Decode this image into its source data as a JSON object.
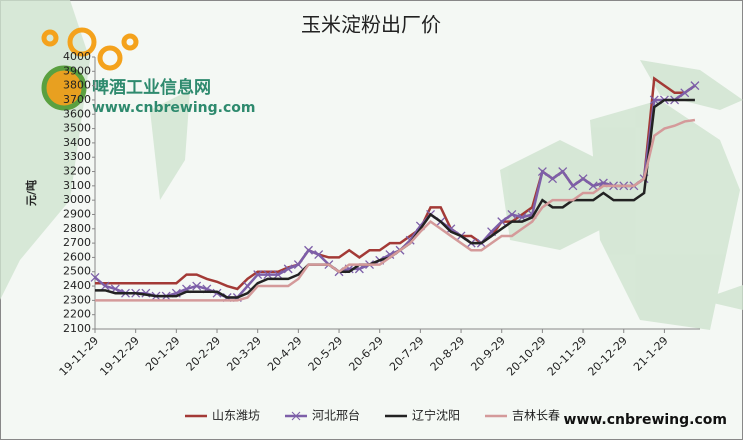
{
  "chart_data": {
    "type": "line",
    "title": "玉米淀粉出厂价",
    "y_label": "元/吨",
    "watermark": [
      "啤酒工业信息网",
      "www.cnbrewing.com"
    ],
    "source": "www.cnbrewing.com",
    "categories": [
      "19-11-29",
      null,
      null,
      null,
      "19-12-29",
      null,
      null,
      null,
      "20-1-29",
      null,
      null,
      null,
      "20-2-29",
      null,
      null,
      null,
      "20-3-29",
      null,
      null,
      null,
      "20-4-29",
      null,
      null,
      null,
      "20-5-29",
      null,
      null,
      null,
      "20-6-29",
      null,
      null,
      null,
      "20-7-29",
      null,
      null,
      null,
      "20-8-29",
      null,
      null,
      null,
      "20-9-29",
      null,
      null,
      null,
      "20-10-29",
      null,
      null,
      null,
      "20-11-29",
      null,
      null,
      null,
      "20-12-29",
      null,
      null,
      null,
      "21-1-29",
      null,
      null,
      null
    ],
    "series": [
      {
        "name": "山东潍坊",
        "color": "#a33a36",
        "marker": "none",
        "values": [
          2420,
          2420,
          2420,
          2420,
          2420,
          2420,
          2420,
          2420,
          2420,
          2480,
          2480,
          2450,
          2430,
          2400,
          2380,
          2450,
          2500,
          2500,
          2500,
          2530,
          2550,
          2650,
          2620,
          2600,
          2600,
          2650,
          2600,
          2650,
          2650,
          2700,
          2700,
          2750,
          2800,
          2950,
          2950,
          2800,
          2750,
          2750,
          2700,
          2750,
          2850,
          2850,
          2900,
          2950,
          3200,
          3150,
          3200,
          3100,
          3150,
          3100,
          3120,
          3100,
          3100,
          3100,
          3150,
          3850,
          3800,
          3750,
          3750,
          3800
        ]
      },
      {
        "name": "河北邢台",
        "color": "#7d5fa8",
        "marker": "x",
        "values": [
          2460,
          2400,
          2380,
          2350,
          2350,
          2350,
          2330,
          2330,
          2350,
          2380,
          2400,
          2380,
          2350,
          2320,
          2320,
          2400,
          2480,
          2480,
          2480,
          2520,
          2550,
          2650,
          2620,
          2550,
          2500,
          2520,
          2520,
          2550,
          2580,
          2620,
          2650,
          2720,
          2820,
          2900,
          2850,
          2800,
          2750,
          2700,
          2700,
          2780,
          2850,
          2900,
          2880,
          2900,
          3200,
          3150,
          3200,
          3100,
          3150,
          3100,
          3120,
          3100,
          3100,
          3100,
          3150,
          3700,
          3700,
          3700,
          3750,
          3800
        ]
      },
      {
        "name": "辽宁沈阳",
        "color": "#222222",
        "marker": "none",
        "values": [
          2370,
          2370,
          2350,
          2350,
          2350,
          2340,
          2330,
          2330,
          2330,
          2360,
          2360,
          2360,
          2360,
          2320,
          2320,
          2350,
          2420,
          2450,
          2450,
          2450,
          2480,
          2550,
          2550,
          2550,
          2500,
          2500,
          2550,
          2550,
          2580,
          2600,
          2650,
          2700,
          2800,
          2900,
          2850,
          2780,
          2750,
          2700,
          2700,
          2750,
          2800,
          2850,
          2850,
          2880,
          3000,
          2950,
          2950,
          3000,
          3000,
          3000,
          3050,
          3000,
          3000,
          3000,
          3050,
          3650,
          3700,
          3700,
          3700,
          3700
        ]
      },
      {
        "name": "吉林长春",
        "color": "#d49a9a",
        "marker": "none",
        "values": [
          2300,
          2300,
          2300,
          2300,
          2300,
          2300,
          2300,
          2300,
          2300,
          2300,
          2300,
          2300,
          2300,
          2300,
          2300,
          2320,
          2400,
          2400,
          2400,
          2400,
          2450,
          2550,
          2550,
          2550,
          2500,
          2550,
          2550,
          2550,
          2550,
          2600,
          2650,
          2700,
          2780,
          2850,
          2800,
          2750,
          2700,
          2650,
          2650,
          2700,
          2750,
          2750,
          2800,
          2850,
          2950,
          3000,
          3000,
          3000,
          3050,
          3050,
          3100,
          3100,
          3100,
          3100,
          3150,
          3450,
          3500,
          3520,
          3550,
          3560
        ]
      }
    ],
    "ylim": [
      2100,
      4000
    ],
    "yticks": [
      2100,
      2200,
      2300,
      2400,
      2500,
      2600,
      2700,
      2800,
      2900,
      3000,
      3100,
      3200,
      3300,
      3400,
      3500,
      3600,
      3700,
      3800,
      3900,
      4000
    ],
    "legend": "bottom"
  }
}
